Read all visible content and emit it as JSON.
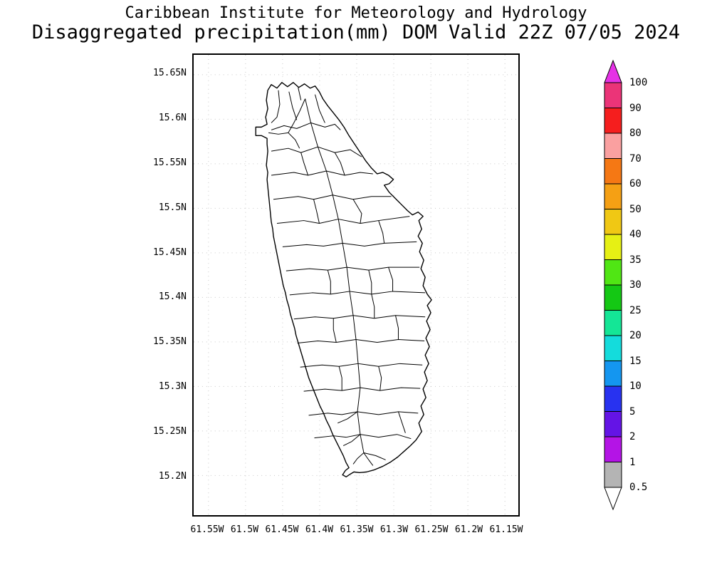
{
  "header": {
    "institution": "Caribbean Institute for Meteorology and Hydrology",
    "product_title": "Disaggregated precipitation(mm) DOM Valid 22Z 07/05 2024"
  },
  "axes": {
    "lat_ticks": [
      "15.65N",
      "15.6N",
      "15.55N",
      "15.5N",
      "15.45N",
      "15.4N",
      "15.35N",
      "15.3N",
      "15.25N",
      "15.2N"
    ],
    "lon_ticks": [
      "61.55W",
      "61.5W",
      "61.45W",
      "61.4W",
      "61.35W",
      "61.3W",
      "61.25W",
      "61.2W",
      "61.15W"
    ]
  },
  "colorbar": {
    "tick_labels": [
      "100",
      "90",
      "80",
      "70",
      "60",
      "50",
      "40",
      "35",
      "30",
      "25",
      "20",
      "15",
      "10",
      "5",
      "2",
      "1",
      "0.5"
    ],
    "segments_top_to_bottom": [
      {
        "range": "> 100",
        "color": "#e632e6",
        "shape": "triangle-up"
      },
      {
        "range": "90-100",
        "color": "#eb3478"
      },
      {
        "range": "80-90",
        "color": "#f51e1e"
      },
      {
        "range": "70-80",
        "color": "#faa0a0"
      },
      {
        "range": "60-70",
        "color": "#f57814"
      },
      {
        "range": "50-60",
        "color": "#f5a014"
      },
      {
        "range": "40-50",
        "color": "#f0c814"
      },
      {
        "range": "35-40",
        "color": "#e6f014"
      },
      {
        "range": "30-35",
        "color": "#50e614"
      },
      {
        "range": "25-30",
        "color": "#14c814"
      },
      {
        "range": "20-25",
        "color": "#14e696"
      },
      {
        "range": "15-20",
        "color": "#14dcdc"
      },
      {
        "range": "10-15",
        "color": "#1496f0"
      },
      {
        "range": "5-10",
        "color": "#2832f0"
      },
      {
        "range": "2-5",
        "color": "#6414e6"
      },
      {
        "range": "1-2",
        "color": "#b414e6"
      },
      {
        "range": "0.5-1",
        "color": "#b4b4b4"
      },
      {
        "range": "< 0.5",
        "color": "#ffffff",
        "shape": "triangle-down"
      }
    ]
  },
  "map": {
    "coastline_color": "#000000",
    "land_fill": "#ffffff",
    "grid_color": "#c8c8c8"
  },
  "chart_data": {
    "type": "map",
    "title": "Disaggregated precipitation(mm) DOM Valid 22Z 07/05 2024",
    "region_code": "DOM",
    "valid_time": "22Z 07/05 2024",
    "units": "mm",
    "lat_range": [
      15.2,
      15.65
    ],
    "lon_range": [
      -61.55,
      -61.15
    ],
    "colorbar_levels": [
      0.5,
      1,
      2,
      5,
      10,
      15,
      20,
      25,
      30,
      35,
      40,
      50,
      60,
      70,
      80,
      90,
      100
    ]
  }
}
